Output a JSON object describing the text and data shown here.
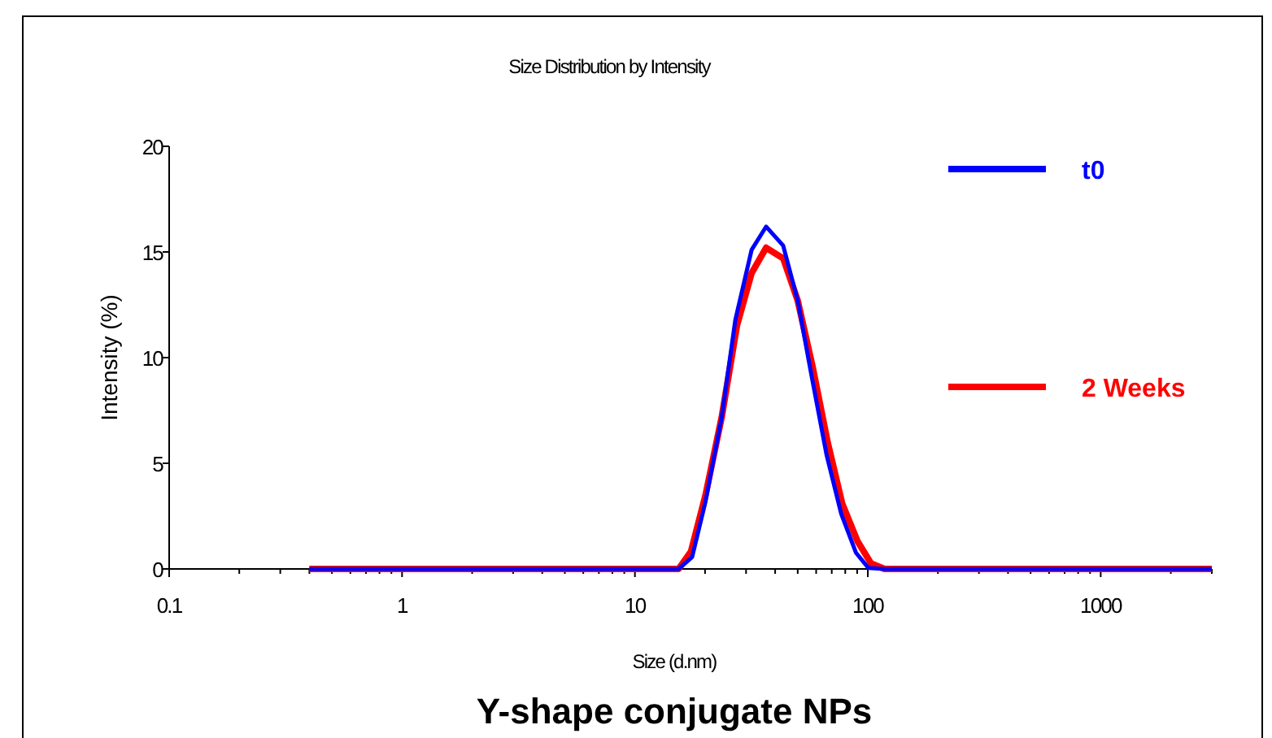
{
  "chart_data": {
    "type": "line",
    "title": "Size Distribution by Intensity",
    "xlabel": "Size (d.nm)",
    "ylabel": "Intensity (%)",
    "annotations": [
      "Y-shape conjugate NPs"
    ],
    "log": "x",
    "xlim": [
      0.1,
      3000
    ],
    "ylim": [
      0,
      20
    ],
    "xticks": [
      {
        "value": 0.1,
        "label": "0.1"
      },
      {
        "value": 0.2,
        "label": null
      },
      {
        "value": 0.3,
        "label": null
      },
      {
        "value": 0.4,
        "label": null
      },
      {
        "value": 0.5,
        "label": null
      },
      {
        "value": 0.6,
        "label": null
      },
      {
        "value": 0.7,
        "label": null
      },
      {
        "value": 0.8,
        "label": null
      },
      {
        "value": 0.9,
        "label": null
      },
      1,
      {
        "value": 2,
        "label": null
      },
      {
        "value": 3,
        "label": null
      },
      {
        "value": 4,
        "label": null
      },
      {
        "value": 5,
        "label": null
      },
      {
        "value": 6,
        "label": null
      },
      {
        "value": 7,
        "label": null
      },
      {
        "value": 8,
        "label": null
      },
      {
        "value": 9,
        "label": null
      },
      10,
      {
        "value": 20,
        "label": null
      },
      {
        "value": 30,
        "label": null
      },
      {
        "value": 40,
        "label": null
      },
      {
        "value": 50,
        "label": null
      },
      {
        "value": 60,
        "label": null
      },
      {
        "value": 70,
        "label": null
      },
      {
        "value": 80,
        "label": null
      },
      {
        "value": 90,
        "label": null
      },
      100,
      {
        "value": 200,
        "label": null
      },
      {
        "value": 300,
        "label": null
      },
      {
        "value": 400,
        "label": null
      },
      {
        "value": 500,
        "label": null
      },
      {
        "value": 600,
        "label": null
      },
      {
        "value": 700,
        "label": null
      },
      {
        "value": 800,
        "label": null
      },
      {
        "value": 900,
        "label": null
      },
      1000,
      {
        "value": 2000,
        "label": null
      },
      {
        "value": 3000,
        "label": null
      }
    ],
    "yticks": [
      0,
      5,
      10,
      15,
      20
    ],
    "grid": false,
    "legend": "right",
    "marker": "none",
    "line_style": "solid",
    "series": [
      {
        "name": "t0",
        "color": "#0000ff",
        "x": [
          0.4,
          15.4,
          17.6,
          20.1,
          23.6,
          27.0,
          31.7,
          36.6,
          43.3,
          50.0,
          57.2,
          66.5,
          76.9,
          88.9,
          100.5,
          118,
          3000
        ],
        "values": [
          0,
          0,
          0.56,
          3.2,
          7.2,
          11.8,
          15.1,
          16.2,
          15.3,
          12.7,
          9.2,
          5.4,
          2.6,
          0.77,
          0.05,
          0,
          0
        ]
      },
      {
        "name": "2 Weeks",
        "color": "#ff0000",
        "x": [
          0.4,
          15.4,
          17.4,
          20.1,
          23.6,
          27.4,
          31.7,
          36.6,
          43.3,
          50.0,
          58.1,
          67.2,
          77.6,
          90.4,
          103.3,
          118,
          3000
        ],
        "values": [
          0,
          0,
          0.82,
          3.5,
          7.2,
          11.5,
          14.0,
          15.2,
          14.7,
          12.7,
          9.5,
          6.0,
          3.1,
          1.3,
          0.26,
          0,
          0
        ]
      }
    ]
  }
}
